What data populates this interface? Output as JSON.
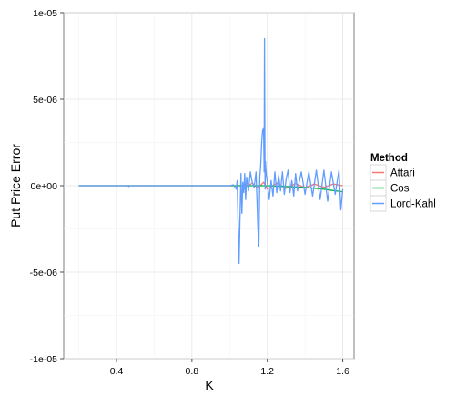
{
  "chart_data": {
    "type": "line",
    "title": "",
    "xlabel": "K",
    "ylabel": "Put Price Error",
    "xlim": [
      0.12,
      1.66
    ],
    "ylim": [
      -1e-05,
      1e-05
    ],
    "x_ticks": [
      0.4,
      0.8,
      1.2,
      1.6
    ],
    "x_tick_labels": [
      "0.4",
      "0.8",
      "1.2",
      "1.6"
    ],
    "y_ticks": [
      -1e-05,
      -5e-06,
      0,
      5e-06,
      1e-05
    ],
    "y_tick_labels": [
      "-1e-05",
      "-5e-06",
      "0e+00",
      "5e-06",
      "1e-05"
    ],
    "grid": true,
    "legend": {
      "title": "Method",
      "placement": "right",
      "entries": [
        "Attari",
        "Cos",
        "Lord-Kahl"
      ]
    },
    "series": [
      {
        "name": "Attari",
        "color": "#F8766D",
        "x": [
          0.2,
          1.0,
          1.1,
          1.12,
          1.15,
          1.18,
          1.2,
          1.25,
          1.3,
          1.35,
          1.4,
          1.45,
          1.5,
          1.55,
          1.6
        ],
        "y": [
          0,
          0,
          0,
          1.5e-07,
          -1.5e-07,
          2e-07,
          -2e-07,
          1.5e-07,
          -1.5e-07,
          1.2e-07,
          -1.2e-07,
          1e-07,
          -1e-07,
          1e-07,
          0
        ]
      },
      {
        "name": "Cos",
        "color": "#00BA38",
        "x": [
          0.2,
          1.0,
          1.2,
          1.3,
          1.4,
          1.5,
          1.55,
          1.6
        ],
        "y": [
          0,
          0,
          0,
          -5e-08,
          -1e-07,
          -2e-07,
          -2.8e-07,
          -3.5e-07
        ]
      },
      {
        "name": "Lord-Kahl",
        "color": "#619CFF",
        "x": [
          0.2,
          0.46,
          0.465,
          0.47,
          1.0,
          1.02,
          1.035,
          1.04,
          1.05,
          1.06,
          1.065,
          1.07,
          1.075,
          1.08,
          1.085,
          1.09,
          1.1,
          1.11,
          1.12,
          1.13,
          1.14,
          1.15,
          1.155,
          1.16,
          1.165,
          1.17,
          1.175,
          1.18,
          1.183,
          1.185,
          1.188,
          1.19,
          1.192,
          1.195,
          1.2,
          1.21,
          1.22,
          1.23,
          1.24,
          1.25,
          1.26,
          1.27,
          1.28,
          1.29,
          1.3,
          1.31,
          1.32,
          1.33,
          1.34,
          1.35,
          1.36,
          1.38,
          1.4,
          1.42,
          1.44,
          1.46,
          1.48,
          1.5,
          1.52,
          1.54,
          1.56,
          1.58,
          1.59,
          1.6
        ],
        "y": [
          0,
          0,
          -5e-08,
          0,
          0,
          5e-08,
          -2e-07,
          3e-07,
          -4.5e-06,
          7e-07,
          -1.6e-06,
          2e-07,
          -4e-07,
          7e-07,
          -8e-07,
          5e-07,
          -3e-07,
          8e-07,
          2e-07,
          -1e-07,
          8e-07,
          -2.5e-06,
          -3.5e-06,
          5e-07,
          1.2e-06,
          2.5e-06,
          3.2e-06,
          3.3e-06,
          8e-07,
          8.5e-06,
          -2e-07,
          1.4e-06,
          1e-06,
          6e-07,
          2e-07,
          -8e-07,
          3e-07,
          -6e-07,
          8e-07,
          -4e-07,
          6e-07,
          -3e-07,
          8e-07,
          -5e-07,
          4e-07,
          9e-07,
          -4e-07,
          3e-07,
          -6e-07,
          7e-07,
          -3e-07,
          8e-07,
          -5e-07,
          8e-07,
          -6e-07,
          9e-07,
          -8e-07,
          9e-07,
          -9e-07,
          8e-07,
          -5e-07,
          9e-07,
          -1.4e-06,
          -2e-07
        ]
      }
    ]
  }
}
